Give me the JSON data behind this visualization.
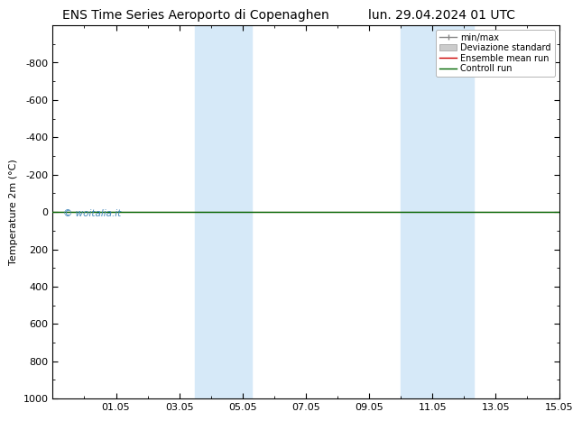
{
  "title_left": "ENS Time Series Aeroporto di Copenaghen",
  "title_right": "lun. 29.04.2024 01 UTC",
  "ylabel": "Temperature 2m (°C)",
  "ylim_top": -1000,
  "ylim_bottom": 1000,
  "yticks": [
    -800,
    -600,
    -400,
    -200,
    0,
    200,
    400,
    600,
    800,
    1000
  ],
  "xtick_labels": [
    "01.05",
    "03.05",
    "05.05",
    "07.05",
    "09.05",
    "11.05",
    "13.05",
    "15.05"
  ],
  "xtick_positions": [
    2,
    4,
    6,
    8,
    10,
    12,
    14,
    16
  ],
  "xlim": [
    0,
    16
  ],
  "shaded_bands": [
    {
      "x_start": 4.5,
      "x_end": 6.3
    },
    {
      "x_start": 11.0,
      "x_end": 13.3
    }
  ],
  "shade_color": "#d6e9f8",
  "control_run_color": "#006600",
  "ensemble_mean_color": "#cc0000",
  "std_color": "#cccccc",
  "minmax_color": "#888888",
  "watermark": "© woitalia.it",
  "watermark_color": "#4488bb",
  "background_color": "#ffffff",
  "legend_items": [
    "min/max",
    "Deviazione standard",
    "Ensemble mean run",
    "Controll run"
  ],
  "legend_colors": [
    "#888888",
    "#cccccc",
    "#cc0000",
    "#006600"
  ],
  "title_fontsize": 10,
  "axis_fontsize": 8,
  "tick_fontsize": 8
}
